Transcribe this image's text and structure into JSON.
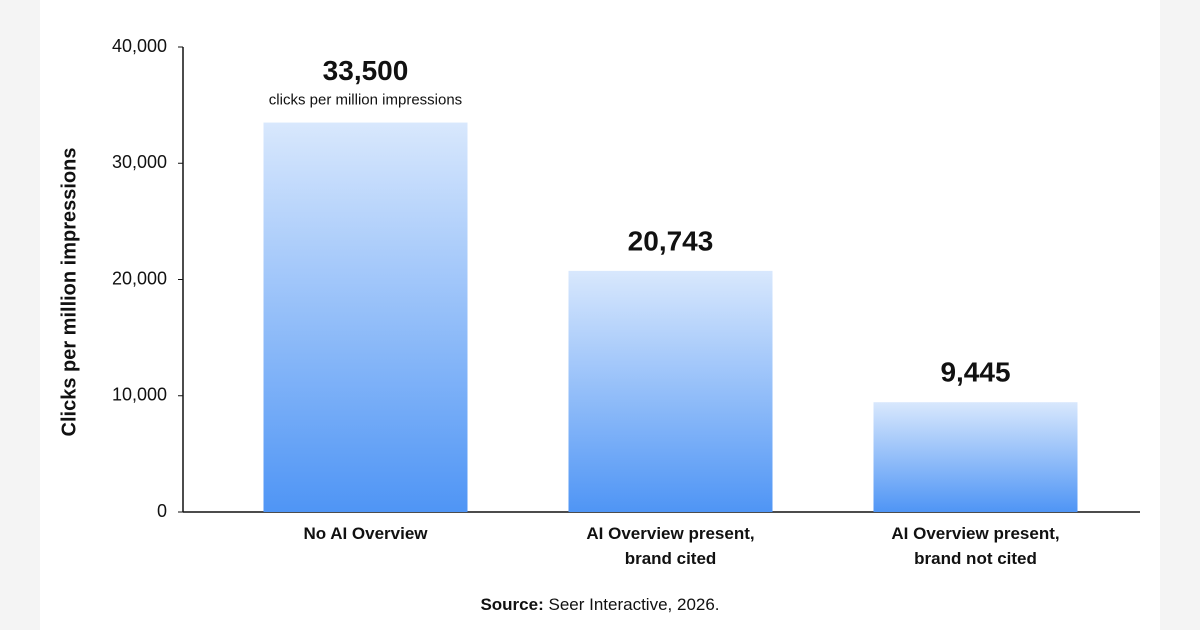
{
  "chart_data": {
    "type": "bar",
    "y_axis_label": "Clicks per million impressions",
    "categories": [
      "No AI Overview",
      "AI Overview present, brand cited",
      "AI Overview present, brand not cited"
    ],
    "values": [
      33500,
      20743,
      9445
    ],
    "value_labels": [
      "33,500",
      "20,743",
      "9,445"
    ],
    "annotation": "clicks per million impressions",
    "color": "#4f95f5",
    "ylim": [
      0,
      40000
    ],
    "yticks": [
      0,
      {
        "value": 10000,
        "label": "10,000"
      },
      {
        "value": 20000,
        "label": "20,000"
      },
      {
        "value": 30000,
        "label": "30,000"
      },
      {
        "value": 40000,
        "label": "40,000"
      }
    ],
    "grid": false,
    "source_label": "Source:",
    "source_text": "Seer Interactive, 2026."
  }
}
